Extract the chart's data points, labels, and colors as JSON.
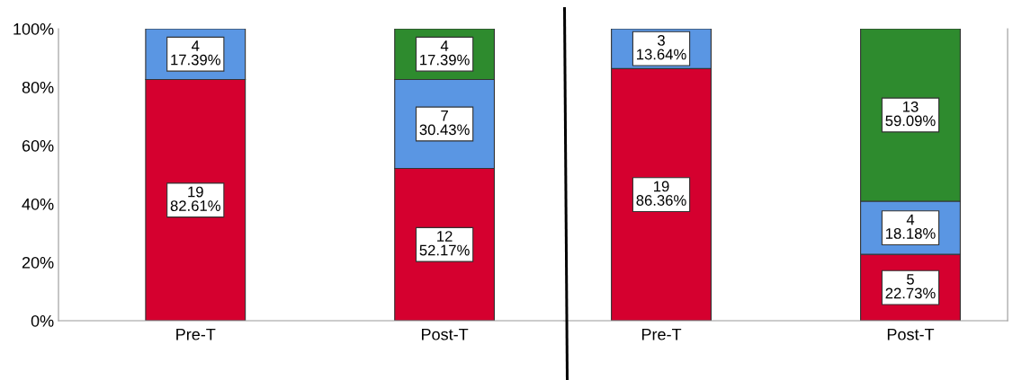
{
  "chart_data": [
    {
      "type": "bar",
      "stacked": true,
      "categories": [
        "Pre-T",
        "Post-T"
      ],
      "ylim": [
        0,
        100
      ],
      "yticks": [
        {
          "value": 0,
          "label": "0%"
        },
        {
          "value": 20,
          "label": "20%"
        },
        {
          "value": 40,
          "label": "40%"
        },
        {
          "value": 60,
          "label": "60%"
        },
        {
          "value": 80,
          "label": "80%"
        },
        {
          "value": 100,
          "label": "100%"
        }
      ],
      "grid": false,
      "series": [
        {
          "color": "#d5002f",
          "values": [
            82.61,
            52.17
          ],
          "value_labels": [
            "19\n82.61%",
            "12\n52.17%"
          ]
        },
        {
          "color": "#5a96e3",
          "values": [
            17.39,
            30.43
          ],
          "value_labels": [
            "4\n17.39%",
            "7\n30.43%"
          ]
        },
        {
          "color": "#2e8b2e",
          "values": [
            null,
            17.39
          ],
          "value_labels": [
            null,
            "4\n17.39%"
          ]
        }
      ]
    },
    {
      "type": "bar",
      "stacked": true,
      "categories": [
        "Pre-T",
        "Post-T"
      ],
      "ylim": [
        0,
        100
      ],
      "tick_labels": "x",
      "grid": false,
      "series": [
        {
          "color": "#d5002f",
          "values": [
            86.36,
            22.73
          ],
          "value_labels": [
            "19\n86.36%",
            "5\n22.73%"
          ]
        },
        {
          "color": "#5a96e3",
          "values": [
            13.64,
            18.18
          ],
          "value_labels": [
            "3\n13.64%",
            "4\n18.18%"
          ]
        },
        {
          "color": "#2e8b2e",
          "values": [
            null,
            59.09
          ],
          "value_labels": [
            null,
            "13\n59.09%"
          ]
        }
      ]
    }
  ]
}
